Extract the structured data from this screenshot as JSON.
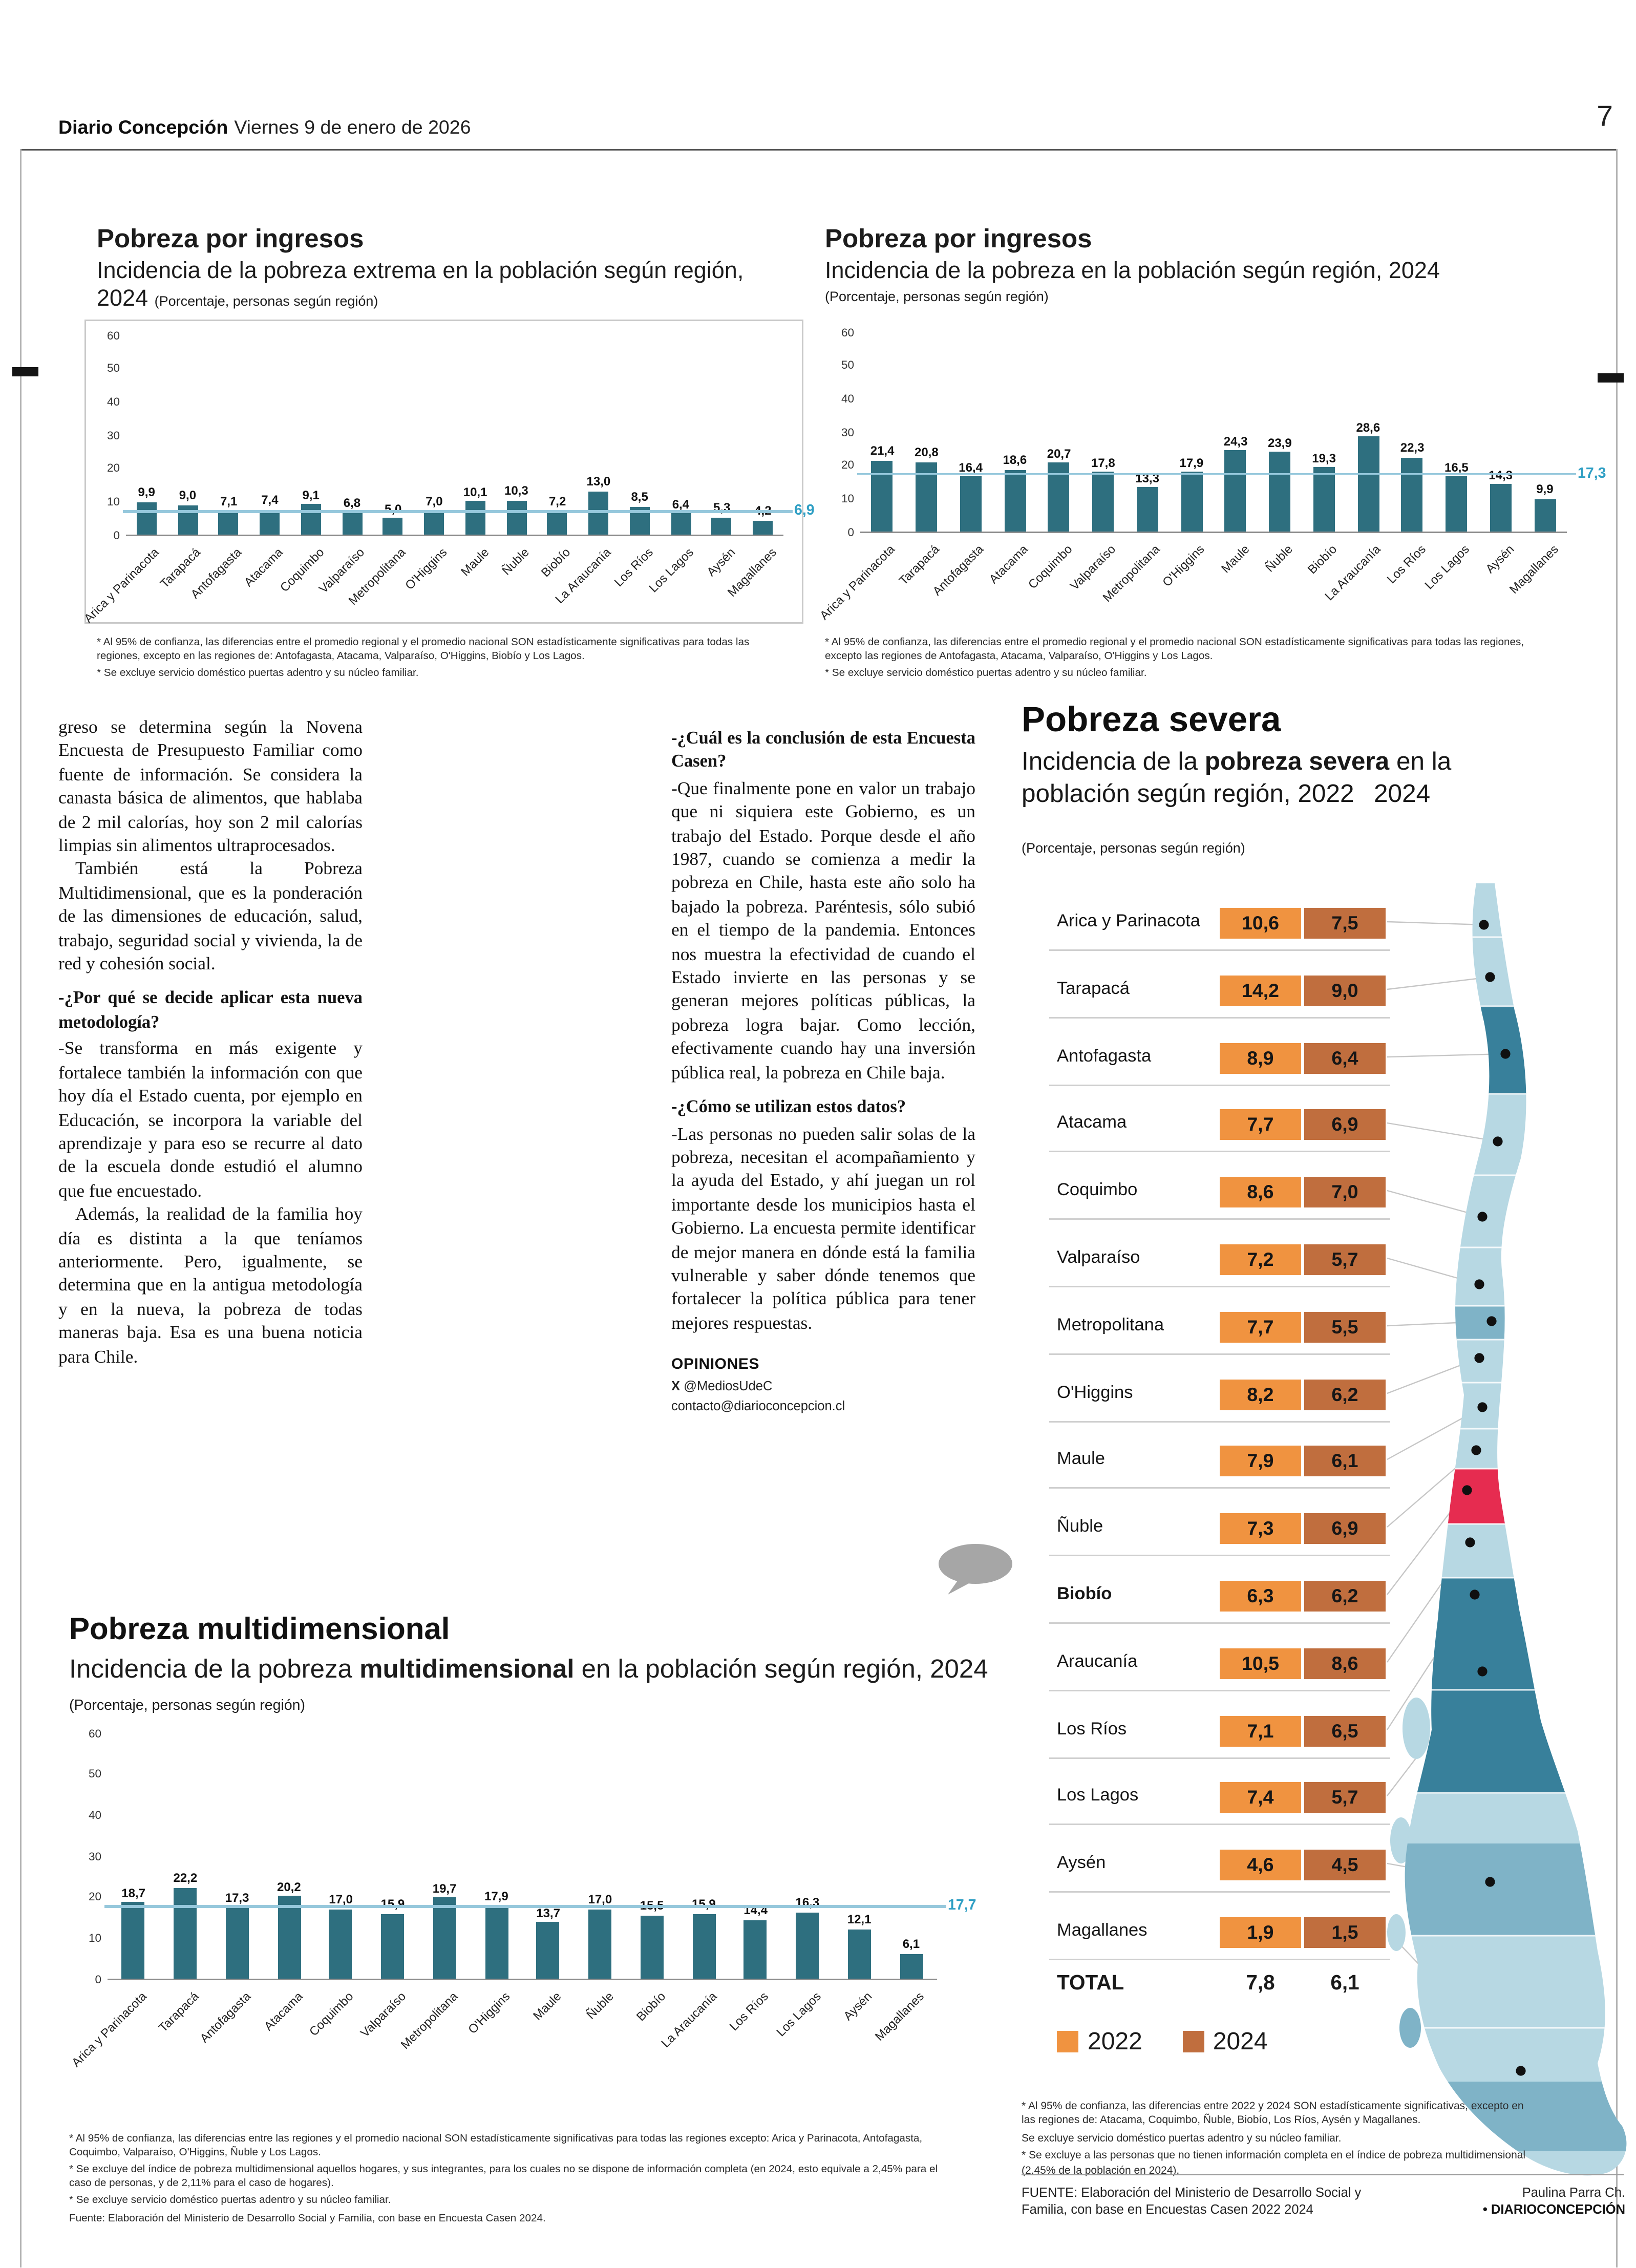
{
  "masthead": {
    "paper": "Diario Concepción",
    "date": "Viernes 9 de enero de 2026",
    "page_number": "7"
  },
  "colors": {
    "bar": "#2e6f7f",
    "avg_line": "#96c8dc",
    "avg_text": "#2f9fc4",
    "box_2022": "#f09340",
    "box_2024": "#c06e3e",
    "map_red": "#e62c50",
    "map_light": "#b7d8e3",
    "map_mid": "#7fb3c7",
    "map_dark": "#38809b"
  },
  "chart_data": [
    {
      "id": "pobreza-extrema",
      "type": "bar",
      "title": "Pobreza por ingresos",
      "subtitle": "Incidencia de la pobreza extrema en la población según región, 2024",
      "unit": "(Porcentaje, personas según región)",
      "categories": [
        "Arica y Parinacota",
        "Tarapacá",
        "Antofagasta",
        "Atacama",
        "Coquimbo",
        "Valparaíso",
        "Metropolitana",
        "O'Higgins",
        "Maule",
        "Ñuble",
        "Biobío",
        "La Araucanía",
        "Los Ríos",
        "Los Lagos",
        "Aysén",
        "Magallanes"
      ],
      "values": [
        9.9,
        9.0,
        7.1,
        7.4,
        9.1,
        6.8,
        5.0,
        7.0,
        10.1,
        10.3,
        7.2,
        13.0,
        8.5,
        6.4,
        5.3,
        4.2
      ],
      "national_average": 6.9,
      "ylim": [
        0,
        60
      ],
      "yticks": [
        0,
        10,
        20,
        30,
        40,
        50,
        60
      ],
      "footnotes": [
        "* Al 95% de confianza, las diferencias entre el promedio regional y el promedio nacional SON estadísticamente significativas para todas las regiones, excepto en las regiones de: Antofagasta, Atacama, Valparaíso, O'Higgins, Biobío y Los Lagos.",
        "* Se excluye servicio doméstico puertas adentro y su núcleo familiar."
      ]
    },
    {
      "id": "pobreza-ingresos",
      "type": "bar",
      "title": "Pobreza por ingresos",
      "subtitle": "Incidencia de la pobreza en la población según región, 2024",
      "unit": "(Porcentaje, personas según región)",
      "categories": [
        "Arica y Parinacota",
        "Tarapacá",
        "Antofagasta",
        "Atacama",
        "Coquimbo",
        "Valparaíso",
        "Metropolitana",
        "O'Higgins",
        "Maule",
        "Ñuble",
        "Biobío",
        "La Araucanía",
        "Los Ríos",
        "Los Lagos",
        "Aysén",
        "Magallanes"
      ],
      "values": [
        21.4,
        20.8,
        16.4,
        18.6,
        20.7,
        17.8,
        13.3,
        17.9,
        24.3,
        23.9,
        19.3,
        28.6,
        22.3,
        16.5,
        14.3,
        9.9
      ],
      "national_average": 17.3,
      "ylim": [
        0,
        60
      ],
      "yticks": [
        0,
        10,
        20,
        30,
        40,
        50,
        60
      ],
      "footnotes": [
        "* Al 95% de confianza, las diferencias entre el promedio regional y el promedio nacional SON estadísticamente significativas para todas las regiones, excepto las regiones de Antofagasta, Atacama, Valparaíso, O'Higgins y Los Lagos.",
        "* Se excluye servicio doméstico puertas adentro y su núcleo familiar."
      ]
    },
    {
      "id": "pobreza-multidimensional",
      "type": "bar",
      "title": "Pobreza multidimensional",
      "subtitle_pre": "Incidencia de la pobreza ",
      "subtitle_bold": "multidimensional",
      "subtitle_post": " en la población según región, 2024",
      "unit": "(Porcentaje, personas según región)",
      "categories": [
        "Arica y Parinacota",
        "Tarapacá",
        "Antofagasta",
        "Atacama",
        "Coquimbo",
        "Valparaíso",
        "Metropolitana",
        "O'Higgins",
        "Maule",
        "Ñuble",
        "Biobío",
        "La Araucanía",
        "Los Ríos",
        "Los Lagos",
        "Aysén",
        "Magallanes"
      ],
      "values": [
        18.7,
        22.2,
        17.3,
        20.2,
        17.0,
        15.9,
        19.7,
        17.9,
        13.7,
        17.0,
        15.5,
        15.9,
        14.4,
        16.3,
        12.1,
        6.1
      ],
      "national_average": 17.7,
      "ylim": [
        0,
        60
      ],
      "yticks": [
        0,
        10,
        20,
        30,
        40,
        50,
        60
      ],
      "footnotes": [
        "* Al 95% de confianza, las diferencias entre las regiones y el promedio nacional SON estadísticamente significativas para todas las regiones excepto: Arica y Parinacota, Antofagasta, Coquimbo, Valparaíso, O'Higgins, Ñuble y Los Lagos.",
        "* Se excluye del índice de pobreza multidimensional aquellos hogares, y sus integrantes, para los cuales no se dispone de información completa (en 2024, esto equivale a 2,45% para el caso de personas, y de 2,11% para el caso de hogares).",
        "* Se excluye servicio doméstico puertas adentro y su núcleo familiar.",
        "Fuente: Elaboración del Ministerio de Desarrollo Social y Familia, con base en Encuesta Casen 2024."
      ]
    },
    {
      "id": "pobreza-severa",
      "type": "table",
      "title": "Pobreza severa",
      "subtitle_pre": "Incidencia de la ",
      "subtitle_bold": "pobreza severa",
      "subtitle_post": " en la población según región, 2022  2024",
      "unit": "(Porcentaje, personas según región)",
      "categories": [
        "Arica y Parinacota",
        "Tarapacá",
        "Antofagasta",
        "Atacama",
        "Coquimbo",
        "Valparaíso",
        "Metropolitana",
        "O'Higgins",
        "Maule",
        "Ñuble",
        "Biobío",
        "Araucanía",
        "Los Ríos",
        "Los Lagos",
        "Aysén",
        "Magallanes"
      ],
      "highlight_region": "Biobío",
      "series": [
        {
          "name": "2022",
          "values": [
            10.6,
            14.2,
            8.9,
            7.7,
            8.6,
            7.2,
            7.7,
            8.2,
            7.9,
            7.3,
            6.3,
            10.5,
            7.1,
            7.4,
            4.6,
            1.9
          ]
        },
        {
          "name": "2024",
          "values": [
            7.5,
            9.0,
            6.4,
            6.9,
            7.0,
            5.7,
            5.5,
            6.2,
            6.1,
            6.9,
            6.2,
            8.6,
            6.5,
            5.7,
            4.5,
            1.5
          ]
        }
      ],
      "total_label": "TOTAL",
      "total": [
        7.8,
        6.1
      ],
      "legend": [
        "2022",
        "2024"
      ],
      "footnotes": [
        "* Al 95% de confianza, las diferencias entre 2022 y 2024 SON estadísticamente significativas, excepto en las regiones de: Atacama, Coquimbo, Ñuble, Biobío, Los Ríos, Aysén y Magallanes.",
        "Se excluye servicio doméstico puertas adentro y su núcleo familiar.",
        "* Se excluye a las personas que no tienen información completa en el índice de pobreza multidimensional (2,45% de la población en 2024)."
      ],
      "fuente": "FUENTE: Elaboración del Ministerio de Desarrollo Social y Familia, con base en Encuestas Casen 2022 2024",
      "credit_author": "Paulina Parra Ch.",
      "credit_brand": "• DIARIOCONCEPCIÓN"
    }
  ],
  "article": {
    "col1": [
      {
        "type": "plain",
        "text": "greso se determina según la Novena Encuesta de Presupuesto Familiar como fuente de información. Se considera la canasta básica de alimentos, que hablaba de 2 mil calorías, hoy son 2 mil calorías limpias sin alimentos ultraprocesados."
      },
      {
        "type": "indent",
        "text": "También está la Pobreza Multidimensional, que es la ponderación de las dimensiones de educación, salud, trabajo, seguridad social y vivienda, la de red y cohesión social."
      },
      {
        "type": "question",
        "text": "-¿Por qué se decide aplicar esta nueva metodología?"
      },
      {
        "type": "plain",
        "text": "-Se transforma en más exigente y fortalece también la información con que hoy día el Estado cuenta, por ejemplo en Educación, se incorpora la variable del aprendizaje y para eso se recurre al dato de la escuela donde estudió el alumno que fue encuestado."
      },
      {
        "type": "indent",
        "text": "Además, la realidad de la familia hoy día es distinta a la que teníamos anteriormente. Pero, igualmente, se determina que en la antigua metodología y en la nueva, la pobreza de todas maneras baja. Esa es una buena noticia para Chile."
      }
    ],
    "col2": [
      {
        "type": "question",
        "text": "-¿Cuál es la conclusión de esta Encuesta Casen?"
      },
      {
        "type": "plain",
        "text": "-Que finalmente pone en valor un trabajo que ni siquiera este Gobierno, es un trabajo del Estado. Porque desde el año 1987, cuando se comienza a medir la pobreza en Chile, hasta este año solo ha bajado la pobreza. Paréntesis, sólo subió en el tiempo de la pandemia. Entonces nos muestra la efectividad de cuando el Estado invierte en las personas y se generan mejores políticas públicas, la pobreza logra bajar. Como lección, efectivamente cuando hay una inversión pública real, la pobreza en Chile baja."
      },
      {
        "type": "question",
        "text": "-¿Cómo se utilizan estos datos?"
      },
      {
        "type": "plain",
        "text": "-Las personas no pueden salir solas de la pobreza, necesitan el acompañamiento y la ayuda del Estado, y ahí juegan un rol importante desde los municipios hasta el Gobierno. La encuesta permite identificar de mejor manera en dónde está la familia vulnerable y saber dónde tenemos que fortalecer la política pública para tener mejores respuestas."
      }
    ],
    "opiniones": {
      "heading": "OPINIONES",
      "x_logo": "X",
      "x_handle": "@MediosUdeC",
      "email": "contacto@diarioconcepcion.cl"
    }
  }
}
